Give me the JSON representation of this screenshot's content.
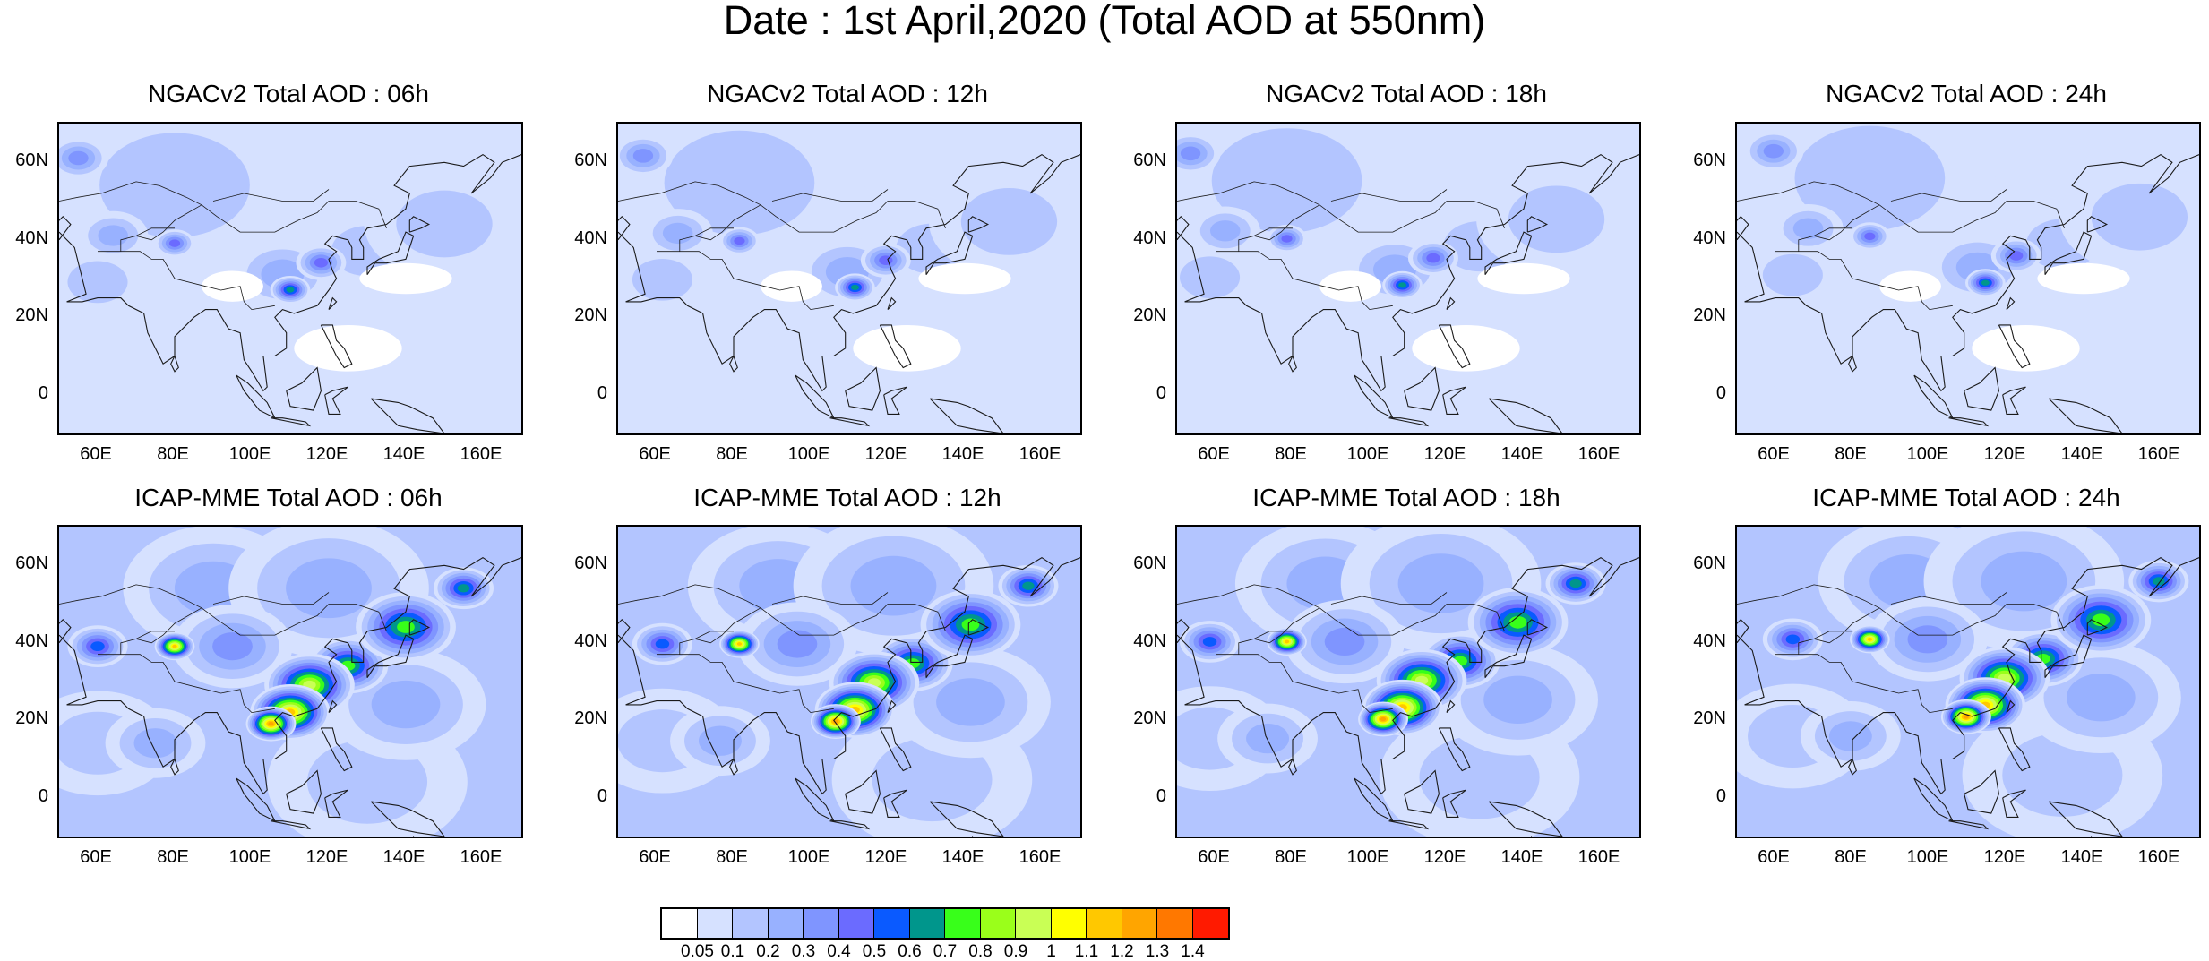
{
  "title": "Date : 1st April,2020 (Total AOD at 550nm)",
  "panels": [
    {
      "title": "NGACv2 Total AOD : 06h"
    },
    {
      "title": "NGACv2 Total AOD : 12h"
    },
    {
      "title": "NGACv2 Total AOD : 18h"
    },
    {
      "title": "NGACv2 Total AOD : 24h"
    },
    {
      "title": "ICAP-MME Total AOD : 06h"
    },
    {
      "title": "ICAP-MME Total AOD : 12h"
    },
    {
      "title": "ICAP-MME Total AOD : 18h"
    },
    {
      "title": "ICAP-MME Total AOD : 24h"
    }
  ],
  "axes": {
    "lat_labels": [
      "60N",
      "40N",
      "20N",
      "0"
    ],
    "lat_values": [
      60,
      40,
      20,
      0
    ],
    "lon_labels": [
      "60E",
      "80E",
      "100E",
      "120E",
      "140E",
      "160E"
    ],
    "lon_values": [
      60,
      80,
      100,
      120,
      140,
      160
    ],
    "lon_range": [
      50,
      170
    ],
    "lat_range": [
      -10,
      70
    ]
  },
  "colorbar": {
    "labels": [
      "0.05",
      "0.1",
      "0.2",
      "0.3",
      "0.4",
      "0.5",
      "0.6",
      "0.7",
      "0.8",
      "0.9",
      "1",
      "1.1",
      "1.2",
      "1.3",
      "1.4"
    ],
    "colors": [
      "#ffffff",
      "#d6e1ff",
      "#b3c5ff",
      "#98b1ff",
      "#7f95ff",
      "#6b6bff",
      "#0a5aff",
      "#00968c",
      "#38ff1a",
      "#9aff1a",
      "#c9ff55",
      "#ffff00",
      "#ffc800",
      "#ffa500",
      "#ff7800",
      "#ff1a00"
    ]
  }
}
